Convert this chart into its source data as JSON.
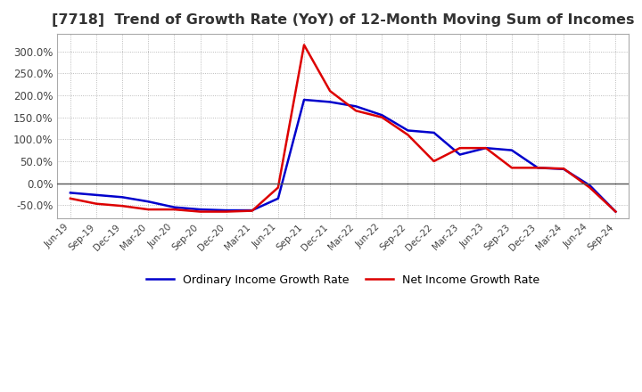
{
  "title": "[7718]  Trend of Growth Rate (YoY) of 12-Month Moving Sum of Incomes",
  "title_fontsize": 11.5,
  "ylim": [
    -80,
    340
  ],
  "yticks": [
    -50,
    0,
    50,
    100,
    150,
    200,
    250,
    300
  ],
  "background_color": "#ffffff",
  "grid_color": "#aaaaaa",
  "ordinary_color": "#0000cc",
  "net_color": "#dd0000",
  "legend_labels": [
    "Ordinary Income Growth Rate",
    "Net Income Growth Rate"
  ],
  "x_labels": [
    "Jun-19",
    "Sep-19",
    "Dec-19",
    "Mar-20",
    "Jun-20",
    "Sep-20",
    "Dec-20",
    "Mar-21",
    "Jun-21",
    "Sep-21",
    "Dec-21",
    "Mar-22",
    "Jun-22",
    "Sep-22",
    "Dec-22",
    "Mar-23",
    "Jun-23",
    "Sep-23",
    "Dec-23",
    "Mar-24",
    "Jun-24",
    "Sep-24"
  ],
  "ordinary_income": [
    -22,
    -27,
    -32,
    -42,
    -55,
    -60,
    -62,
    -62,
    -35,
    190,
    185,
    175,
    155,
    120,
    115,
    65,
    80,
    75,
    35,
    32,
    -5,
    -65
  ],
  "net_income": [
    -35,
    -47,
    -52,
    -60,
    -60,
    -65,
    -65,
    -63,
    -10,
    315,
    210,
    165,
    150,
    110,
    50,
    80,
    80,
    35,
    35,
    33,
    -10,
    -65
  ]
}
